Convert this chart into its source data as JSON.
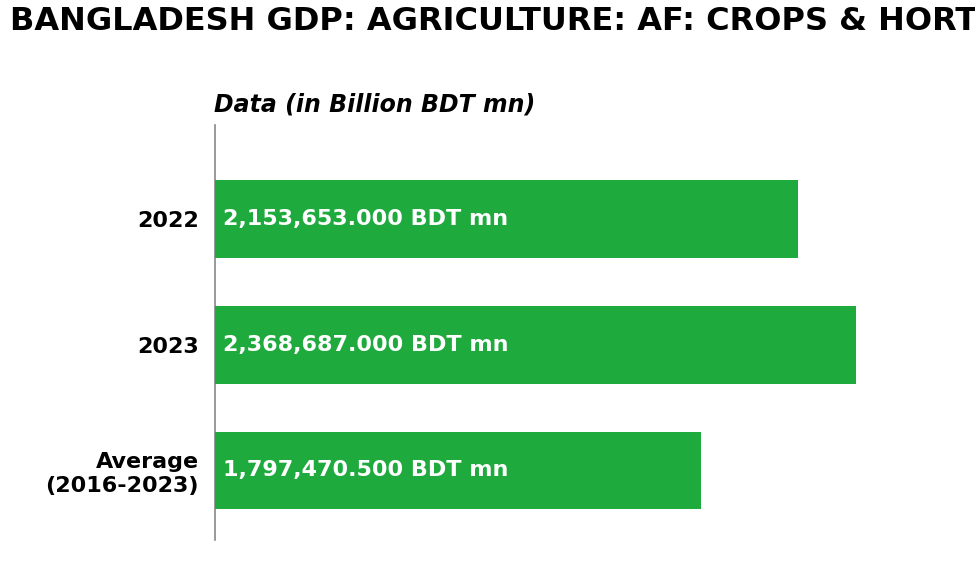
{
  "title": "BANGLADESH GDP: AGRICULTURE: AF: CROPS & HORTICULTURE",
  "xlabel": "Data (in Billion BDT mn)",
  "categories": [
    "2022",
    "2023",
    "Average\n(2016-2023)"
  ],
  "values": [
    2153653.0,
    2368687.0,
    1797470.5
  ],
  "labels": [
    "2,153,653.000 BDT mn",
    "2,368,687.000 BDT mn",
    "1,797,470.500 BDT mn"
  ],
  "bar_color": "#1faa3e",
  "bar_text_color": "#ffffff",
  "title_color": "#000000",
  "background_color": "#ffffff",
  "xlim": [
    0,
    2700000
  ],
  "title_fontsize": 23,
  "xlabel_fontsize": 17,
  "bar_label_fontsize": 16,
  "ytick_fontsize": 16
}
